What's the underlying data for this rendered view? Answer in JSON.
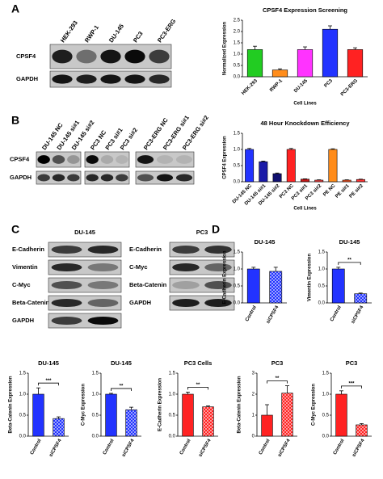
{
  "panel_labels": [
    "A",
    "B",
    "C",
    "D"
  ],
  "blots": [
    {
      "lanes": [
        "HEK-293",
        "RWP-1",
        "DU-145",
        "PC3",
        "PC3-ERG"
      ],
      "rows": [
        "CPSF4",
        "GAPDH"
      ]
    },
    {
      "lanes": [
        "DU-145 NC",
        "DU-145 si#1",
        "DU-145 si#2",
        "PC3 NC",
        "PC3 si#1",
        "PC3 si#2",
        "PC3-ERG NC",
        "PC3-ERG si#1",
        "PC3-ERG si#2"
      ],
      "rows": [
        "CPSF4",
        "GAPDH"
      ]
    },
    {
      "title": "DU-145",
      "rows": [
        "E-Cadherin",
        "Vimentin",
        "C-Myc",
        "Beta-Catenin",
        "GAPDH"
      ]
    },
    {
      "title": "PC3",
      "rows": [
        "E-Cadherin",
        "C-Myc",
        "Beta-Catenin",
        "GAPDH"
      ]
    }
  ],
  "chart_data": [
    {
      "type": "bar",
      "title": "CPSF4 Expression Screening",
      "xlabel": "Cell Lines",
      "ylabel": "Normalized Expression",
      "categories": [
        "HEK-293",
        "RWP-1",
        "DU-145",
        "PC3",
        "PC3-ERG"
      ],
      "values": [
        1.2,
        0.3,
        1.2,
        2.1,
        1.2
      ],
      "errors": [
        0.15,
        0.05,
        0.12,
        0.15,
        0.08
      ],
      "colors": [
        "#22cc22",
        "#ff8c1a",
        "#ff33ff",
        "#2233ff",
        "#ff2222"
      ],
      "ylim": [
        0,
        2.5
      ],
      "yticks": [
        {
          "value": 0,
          "label": "0.0"
        },
        0.5,
        {
          "value": 1,
          "label": "1.0"
        },
        1.5,
        {
          "value": 2,
          "label": "2.0"
        },
        2.5
      ]
    },
    {
      "type": "bar",
      "title": "48 Hour Knockdown Efficiency",
      "xlabel": "Cell Lines",
      "ylabel": "CPSF4 Expression",
      "categories": [
        "DU-145 NC",
        "DU-145 si#1",
        "DU-145 si#2",
        "PC3 NC",
        "PC3 si#1",
        "PC3 si#2",
        "PE NC",
        "PE si#1",
        "PE si#2"
      ],
      "values": [
        1.0,
        0.62,
        0.25,
        1.0,
        0.08,
        0.05,
        1.0,
        0.05,
        0.07
      ],
      "errors": [
        0.03,
        0.02,
        0.02,
        0.03,
        0.01,
        0.01,
        0.02,
        0.01,
        0.01
      ],
      "colors": [
        "#2233ff",
        "#1a1aa8",
        "#101070",
        "#ff2222",
        "#c41818",
        "#ff4444",
        "#ff8c1a",
        "#ff5522",
        "#ff3333"
      ],
      "ylim": [
        0,
        1.5
      ],
      "yticks": [
        {
          "value": 0,
          "label": "0.0"
        },
        0.5,
        {
          "value": 1,
          "label": "1.0"
        },
        1.5
      ]
    },
    {
      "type": "bar",
      "title": "DU-145",
      "ylabel": "E-Cadherin Expression",
      "categories": [
        "Control",
        "siCPSF4"
      ],
      "values": [
        1.0,
        0.93
      ],
      "errors": [
        0.05,
        0.12
      ],
      "colors": [
        "#2233ff",
        "#2233ff"
      ],
      "hatch": [
        false,
        true
      ],
      "ylim": [
        0,
        1.5
      ],
      "yticks": [
        {
          "value": 0,
          "label": "0.0"
        },
        0.5,
        {
          "value": 1,
          "label": "1.0"
        },
        1.5
      ]
    },
    {
      "type": "bar",
      "title": "DU-145",
      "ylabel": "Vimentin Expression",
      "categories": [
        "Control",
        "siCPSF4"
      ],
      "values": [
        1.0,
        0.27
      ],
      "errors": [
        0.05,
        0.02
      ],
      "colors": [
        "#2233ff",
        "#2233ff"
      ],
      "hatch": [
        false,
        true
      ],
      "annotation": "**",
      "ylim": [
        0,
        1.5
      ],
      "yticks": [
        {
          "value": 0,
          "label": "0.0"
        },
        0.5,
        {
          "value": 1,
          "label": "1.0"
        },
        1.5
      ]
    },
    {
      "type": "bar",
      "title": "DU-145",
      "ylabel": "Beta-Catenin Expression",
      "categories": [
        "Control",
        "siCPSF4"
      ],
      "values": [
        1.0,
        0.42
      ],
      "errors": [
        0.15,
        0.04
      ],
      "colors": [
        "#2233ff",
        "#2233ff"
      ],
      "hatch": [
        false,
        true
      ],
      "annotation": "***",
      "ylim": [
        0,
        1.5
      ],
      "yticks": [
        {
          "value": 0,
          "label": "0.0"
        },
        0.5,
        {
          "value": 1,
          "label": "1.0"
        },
        1.5
      ]
    },
    {
      "type": "bar",
      "title": "DU-145",
      "ylabel": "C-Myc Expression",
      "categories": [
        "Control",
        "siCPSF4"
      ],
      "values": [
        1.0,
        0.63
      ],
      "errors": [
        0.02,
        0.06
      ],
      "colors": [
        "#2233ff",
        "#2233ff"
      ],
      "hatch": [
        false,
        true
      ],
      "annotation": "**",
      "ylim": [
        0,
        1.5
      ],
      "yticks": [
        {
          "value": 0,
          "label": "0.0"
        },
        0.5,
        {
          "value": 1,
          "label": "1.0"
        },
        1.5
      ]
    },
    {
      "type": "bar",
      "title": "PC3 Cells",
      "ylabel": "E-Cadherin Expression",
      "categories": [
        "Control",
        "siCPSF4"
      ],
      "values": [
        1.0,
        0.7
      ],
      "errors": [
        0.05,
        0.02
      ],
      "colors": [
        "#ff2222",
        "#ff2222"
      ],
      "hatch": [
        false,
        true
      ],
      "annotation": "**",
      "ylim": [
        0,
        1.5
      ],
      "yticks": [
        {
          "value": 0,
          "label": "0.0"
        },
        0.5,
        {
          "value": 1,
          "label": "1.0"
        },
        1.5
      ]
    },
    {
      "type": "bar",
      "title": "PC3",
      "ylabel": "Beta-Catenin Expression",
      "categories": [
        "Control",
        "siCPSF4"
      ],
      "values": [
        1.0,
        2.05
      ],
      "errors": [
        0.5,
        0.35
      ],
      "colors": [
        "#ff2222",
        "#ff2222"
      ],
      "hatch": [
        false,
        true
      ],
      "annotation": "**",
      "ylim": [
        0,
        3
      ],
      "yticks": [
        0,
        1,
        2,
        3
      ]
    },
    {
      "type": "bar",
      "title": "PC3",
      "ylabel": "C-Myc Expression",
      "categories": [
        "Control",
        "siCPSF4"
      ],
      "values": [
        1.0,
        0.27
      ],
      "errors": [
        0.08,
        0.03
      ],
      "colors": [
        "#ff2222",
        "#ff2222"
      ],
      "hatch": [
        false,
        true
      ],
      "annotation": "***",
      "ylim": [
        0,
        1.5
      ],
      "yticks": [
        {
          "value": 0,
          "label": "0.0"
        },
        0.5,
        {
          "value": 1,
          "label": "1.0"
        },
        1.5
      ]
    }
  ]
}
